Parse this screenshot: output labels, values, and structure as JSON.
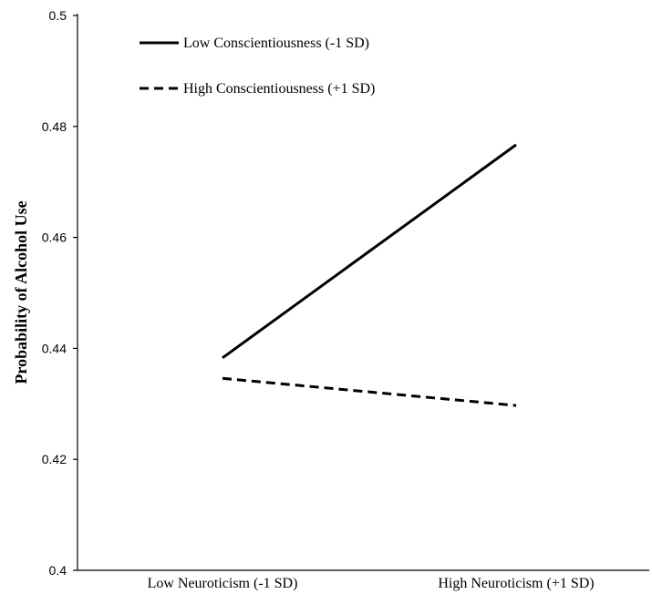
{
  "chart_data": {
    "type": "line",
    "title": "",
    "xlabel": "",
    "ylabel": "Probability of Alcohol Use",
    "categories": [
      "Low Neuroticism (-1 SD)",
      "High Neuroticism (+1 SD)"
    ],
    "ylim": [
      0.4,
      0.5
    ],
    "yticks": [
      "0.4",
      "0.42",
      "0.44",
      "0.46",
      "0.48",
      "0.5"
    ],
    "grid": false,
    "legend_position": "top-left",
    "series": [
      {
        "name": "Low Conscientiousness (-1 SD)",
        "values": [
          0.4383,
          0.4767
        ],
        "style": "solid",
        "color": "#000000"
      },
      {
        "name": "High Conscientiousness (+1 SD)",
        "values": [
          0.4346,
          0.4297
        ],
        "style": "dashed",
        "color": "#000000"
      }
    ]
  }
}
